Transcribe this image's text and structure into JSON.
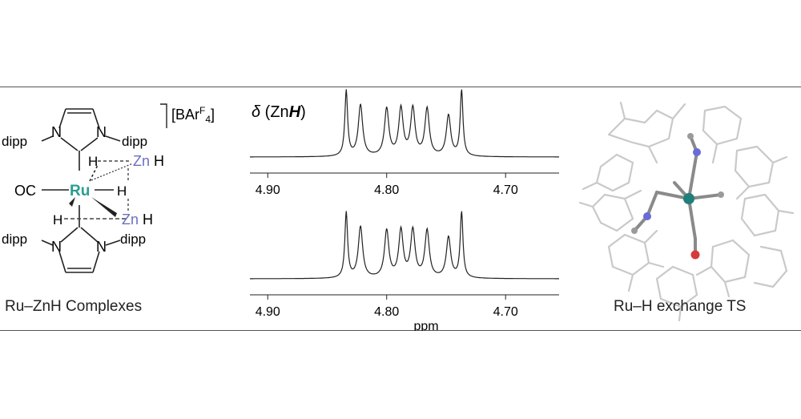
{
  "left_panel": {
    "caption": "Ru–ZnH  Complexes",
    "counterion_bracket": "[BAr",
    "counterion_sup": "F",
    "counterion_sub": "4",
    "counterion_close": "]",
    "labels": {
      "dipp_tl": "dipp",
      "dipp_tr": "dipp",
      "dipp_bl": "dipp",
      "dipp_br": "dipp",
      "n_tl": "N",
      "n_tr": "N",
      "n_bl": "N",
      "n_br": "N",
      "oc": "OC",
      "ru": "Ru",
      "h_right": "H",
      "h_upper": "H",
      "h_lower": "H",
      "zn_top": "Zn",
      "zn_top_h": "H",
      "zn_bottom": "Zn",
      "zn_bottom_h": "H"
    },
    "colors": {
      "ru": "#2a9d8f",
      "zn": "#6b6fc4",
      "bond": "#222222"
    }
  },
  "middle_panel": {
    "title_delta": "δ",
    "title_open": " (Zn",
    "title_h": "H",
    "title_close": ")",
    "x_unit": "ppm",
    "spectra": [
      {
        "ticks": [
          "4.90",
          "4.80",
          "4.70"
        ],
        "peaks_ppm": [
          4.834,
          4.822,
          4.8,
          4.788,
          4.778,
          4.766,
          4.748,
          4.737
        ]
      },
      {
        "ticks": [
          "4.90",
          "4.80",
          "4.70"
        ],
        "peaks_ppm": [
          4.834,
          4.822,
          4.8,
          4.788,
          4.778,
          4.766,
          4.748,
          4.737
        ]
      }
    ],
    "xlim": [
      4.915,
      4.655
    ]
  },
  "right_panel": {
    "caption": "Ru–H exchange TS",
    "colors": {
      "ru": "#1f7f7a",
      "n": "#6a6ad8",
      "o": "#d63a3a",
      "wire": "#c9c9c9",
      "bond": "#8a8a8a"
    }
  }
}
